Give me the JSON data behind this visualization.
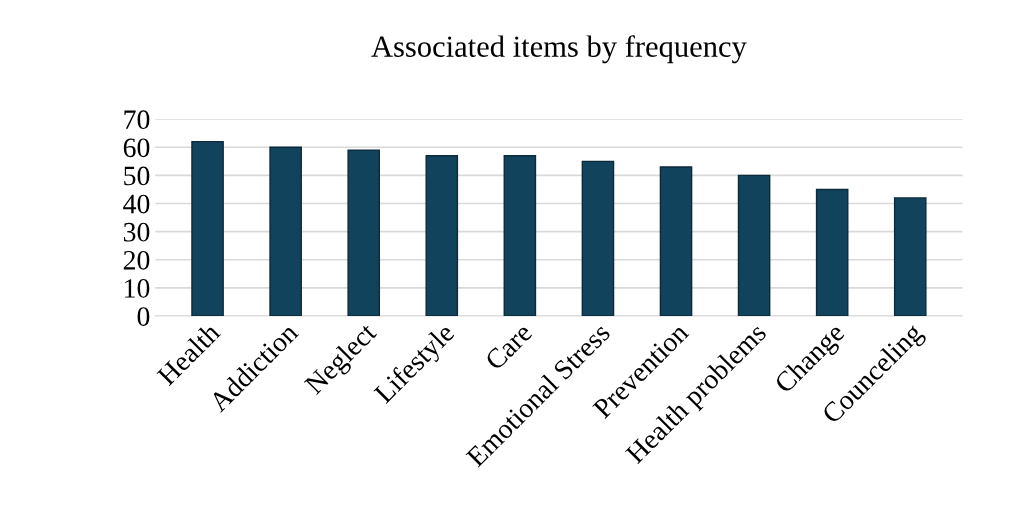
{
  "chart_data": {
    "type": "bar",
    "title": "Associated items by frequency",
    "categories": [
      "Health",
      "Addiction",
      "Neglect",
      "Lifestyle",
      "Care",
      "Emotional Stress",
      "Prevention",
      "Health problems",
      "Change",
      "Counceling"
    ],
    "values": [
      62,
      60,
      59,
      57,
      57,
      55,
      53,
      50,
      45,
      42
    ],
    "color": "#12435d",
    "ylim": [
      0,
      70
    ],
    "yticks": [
      0,
      10,
      20,
      30,
      40,
      50,
      60,
      70
    ],
    "grid": "y",
    "legend": false
  }
}
